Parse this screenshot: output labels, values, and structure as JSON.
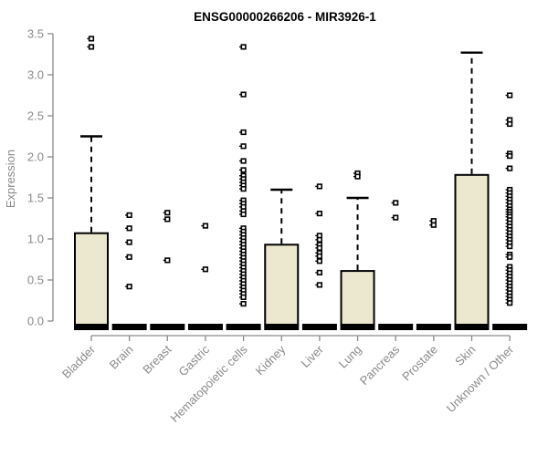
{
  "chart_data": {
    "type": "boxplot",
    "title": "ENSG00000266206 - MIR3926-1",
    "ylabel": "Expression",
    "xlabel": "",
    "ylim": [
      0,
      3.5
    ],
    "yticks": [
      0.0,
      0.5,
      1.0,
      1.5,
      2.0,
      2.5,
      3.0,
      3.5
    ],
    "grid": "off",
    "legend": "none",
    "categories": [
      "Bladder",
      "Brain",
      "Breast",
      "Gastric",
      "Hematopoietic cells",
      "Kidney",
      "Liver",
      "Lung",
      "Pancreas",
      "Prostate",
      "Skin",
      "Unknown / Other"
    ],
    "boxes": [
      {
        "category": "Bladder",
        "q1": 0,
        "median": 0,
        "q3": 1.07,
        "whisker_low": 0,
        "whisker_high": 2.25,
        "outliers": [
          3.44,
          3.34
        ]
      },
      {
        "category": "Brain",
        "q1": 0,
        "median": 0,
        "q3": 0,
        "whisker_low": 0,
        "whisker_high": 0,
        "outliers": [
          1.29,
          1.13,
          0.96,
          0.78,
          0.42
        ]
      },
      {
        "category": "Breast",
        "q1": 0,
        "median": 0,
        "q3": 0,
        "whisker_low": 0,
        "whisker_high": 0,
        "outliers": [
          1.32,
          1.24,
          0.74
        ]
      },
      {
        "category": "Gastric",
        "q1": 0,
        "median": 0,
        "q3": 0,
        "whisker_low": 0,
        "whisker_high": 0,
        "outliers": [
          1.16,
          0.63
        ]
      },
      {
        "category": "Hematopoietic cells",
        "q1": 0,
        "median": 0,
        "q3": 0,
        "whisker_low": 0,
        "whisker_high": 0,
        "outliers": [
          3.34,
          2.76,
          2.3,
          2.13,
          1.95,
          1.84,
          1.77,
          1.73,
          1.69,
          1.65,
          1.61,
          1.47,
          1.43,
          1.39,
          1.34,
          1.3,
          1.13,
          1.09,
          1.05,
          1.01,
          0.97,
          0.93,
          0.89,
          0.85,
          0.81,
          0.77,
          0.73,
          0.69,
          0.65,
          0.61,
          0.57,
          0.53,
          0.49,
          0.45,
          0.41,
          0.37,
          0.33,
          0.29,
          0.21
        ]
      },
      {
        "category": "Kidney",
        "q1": 0,
        "median": 0,
        "q3": 0.93,
        "whisker_low": 0,
        "whisker_high": 1.6,
        "outliers": []
      },
      {
        "category": "Liver",
        "q1": 0,
        "median": 0,
        "q3": 0,
        "whisker_low": 0,
        "whisker_high": 0,
        "outliers": [
          1.64,
          1.31,
          1.04,
          0.99,
          0.93,
          0.89,
          0.83,
          0.79,
          0.73,
          0.59,
          0.44
        ]
      },
      {
        "category": "Lung",
        "q1": 0,
        "median": 0,
        "q3": 0.61,
        "whisker_low": 0,
        "whisker_high": 1.5,
        "outliers": [
          1.8,
          1.76
        ]
      },
      {
        "category": "Pancreas",
        "q1": 0,
        "median": 0,
        "q3": 0,
        "whisker_low": 0,
        "whisker_high": 0,
        "outliers": [
          1.44,
          1.26
        ]
      },
      {
        "category": "Prostate",
        "q1": 0,
        "median": 0,
        "q3": 0,
        "whisker_low": 0,
        "whisker_high": 0,
        "outliers": [
          1.22,
          1.17
        ]
      },
      {
        "category": "Skin",
        "q1": 0,
        "median": 0,
        "q3": 1.78,
        "whisker_low": 0,
        "whisker_high": 3.27,
        "outliers": []
      },
      {
        "category": "Unknown / Other",
        "q1": 0,
        "median": 0,
        "q3": 0,
        "whisker_low": 0,
        "whisker_high": 0,
        "outliers": [
          2.75,
          2.45,
          2.4,
          2.04,
          2.01,
          1.86,
          1.6,
          1.56,
          1.52,
          1.48,
          1.44,
          1.4,
          1.36,
          1.33,
          1.3,
          1.27,
          1.23,
          1.19,
          1.15,
          1.11,
          1.07,
          1.03,
          0.99,
          0.95,
          0.91,
          0.81,
          0.78,
          0.66,
          0.62,
          0.58,
          0.54,
          0.5,
          0.46,
          0.42,
          0.38,
          0.34,
          0.3,
          0.26,
          0.22
        ]
      }
    ],
    "colors": {
      "box_fill": "#ece8cf",
      "box_stroke": "#000000",
      "whisker_color": "#000000",
      "axis_color": "#8a8a8a",
      "tick_label_color": "#8a8a8a",
      "title_color": "#000000",
      "outlier_stroke": "#000000"
    }
  }
}
